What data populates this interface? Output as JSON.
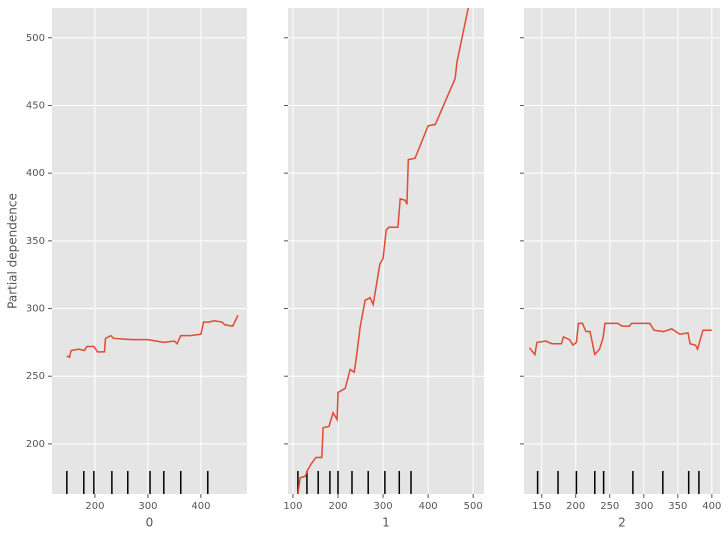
{
  "chart_data": [
    {
      "type": "line",
      "xlabel": "0",
      "ylabel": "Partial dependence",
      "color": "#E24A33",
      "grid": true,
      "ytick_labels": true,
      "x": [
        147,
        152,
        155,
        170,
        180,
        185,
        198,
        205,
        218,
        220,
        230,
        235,
        270,
        300,
        315,
        330,
        350,
        355,
        362,
        380,
        400,
        405,
        415,
        425,
        440,
        445,
        460,
        470
      ],
      "values": [
        265,
        264,
        269,
        270,
        269,
        272,
        272,
        268,
        268,
        278,
        280,
        278,
        277,
        277,
        276,
        275,
        276,
        274,
        280,
        280,
        281,
        290,
        290,
        291,
        290,
        288,
        287,
        295
      ],
      "deciles": [
        147,
        179,
        198,
        232,
        262,
        304,
        330,
        362,
        413
      ],
      "xlim": [
        119,
        487
      ],
      "ylim": [
        163,
        522
      ],
      "xticks": [
        200,
        300,
        400
      ],
      "yticks": [
        200,
        250,
        300,
        350,
        400,
        450,
        500
      ]
    },
    {
      "type": "line",
      "xlabel": "1",
      "color": "#E24A33",
      "grid": true,
      "ytick_labels": false,
      "x": [
        111,
        116,
        127,
        133,
        142,
        151,
        164,
        167,
        180,
        189,
        198,
        200,
        216,
        227,
        236,
        240,
        249,
        260,
        271,
        278,
        293,
        300,
        307,
        313,
        333,
        338,
        349,
        353,
        356,
        371,
        400,
        416,
        460,
        464,
        489
      ],
      "values": [
        163,
        175,
        176,
        181,
        186,
        190,
        190,
        212,
        213,
        223,
        218,
        238,
        241,
        255,
        253,
        262,
        286,
        306,
        308,
        303,
        333,
        337,
        358,
        360,
        360,
        381,
        380,
        377,
        410,
        411,
        435,
        436,
        470,
        482,
        522
      ],
      "deciles": [
        111,
        131,
        156,
        182,
        200,
        231,
        267,
        304,
        336,
        362
      ],
      "xlim": [
        89,
        524
      ],
      "ylim": [
        163,
        522
      ],
      "xticks": [
        100,
        200,
        300,
        400,
        500
      ],
      "yticks": [
        200,
        250,
        300,
        350,
        400,
        450,
        500
      ]
    },
    {
      "type": "line",
      "xlabel": "2",
      "color": "#E24A33",
      "grid": true,
      "ytick_labels": false,
      "x": [
        132,
        140,
        143,
        156,
        165,
        179,
        182,
        191,
        196,
        201,
        204,
        210,
        215,
        221,
        228,
        235,
        240,
        243,
        262,
        268,
        279,
        282,
        309,
        315,
        329,
        341,
        353,
        365,
        368,
        376,
        379,
        387,
        400
      ],
      "values": [
        271,
        266,
        275,
        276,
        274,
        274,
        279,
        277,
        273,
        275,
        289,
        289,
        283,
        283,
        266,
        270,
        278,
        289,
        289,
        287,
        287,
        289,
        289,
        284,
        283,
        285,
        281,
        282,
        274,
        273,
        270,
        284,
        284
      ],
      "deciles": [
        144,
        174,
        201,
        228,
        241,
        284,
        328,
        366,
        381
      ],
      "xlim": [
        124,
        412
      ],
      "ylim": [
        163,
        522
      ],
      "xticks": [
        150,
        200,
        250,
        300,
        350,
        400
      ],
      "yticks": [
        200,
        250,
        300,
        350,
        400,
        450,
        500
      ]
    }
  ]
}
